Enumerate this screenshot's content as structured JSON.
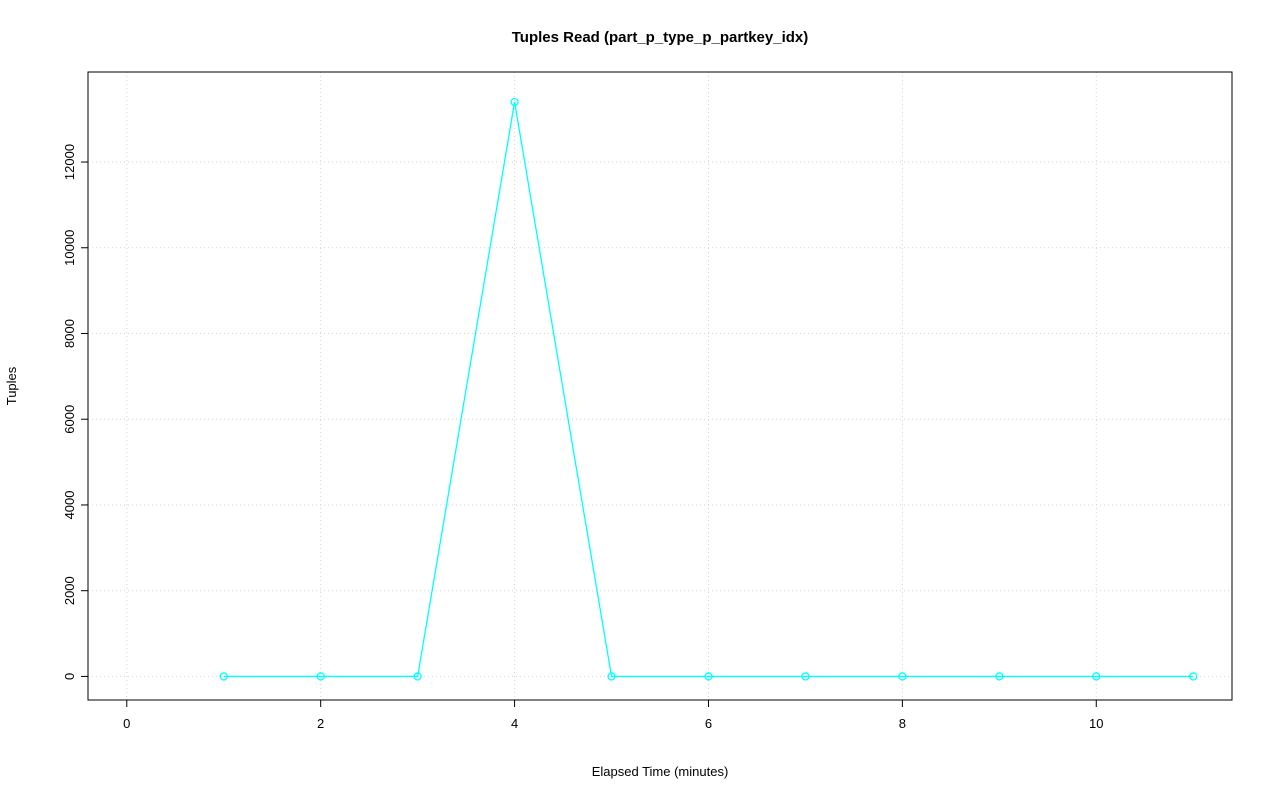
{
  "chart_data": {
    "type": "line",
    "title": "Tuples Read (part_p_type_p_partkey_idx)",
    "xlabel": "Elapsed Time (minutes)",
    "ylabel": "Tuples",
    "x": [
      1,
      2,
      3,
      4,
      5,
      6,
      7,
      8,
      9,
      10,
      11
    ],
    "y": [
      0,
      0,
      0,
      13400,
      0,
      0,
      0,
      0,
      0,
      0,
      0
    ],
    "x_ticks": [
      0,
      2,
      4,
      6,
      8,
      10
    ],
    "y_ticks": [
      0,
      2000,
      4000,
      6000,
      8000,
      10000,
      12000
    ],
    "xlim": [
      -0.4,
      11.4
    ],
    "ylim": [
      -550,
      14100
    ],
    "grid": "dotted",
    "legend": "none",
    "marker": "open-circle",
    "colors": {
      "line": "#00FFFF",
      "grid": "#D3D3D3",
      "axis": "#000000",
      "background": "#FFFFFF"
    }
  }
}
